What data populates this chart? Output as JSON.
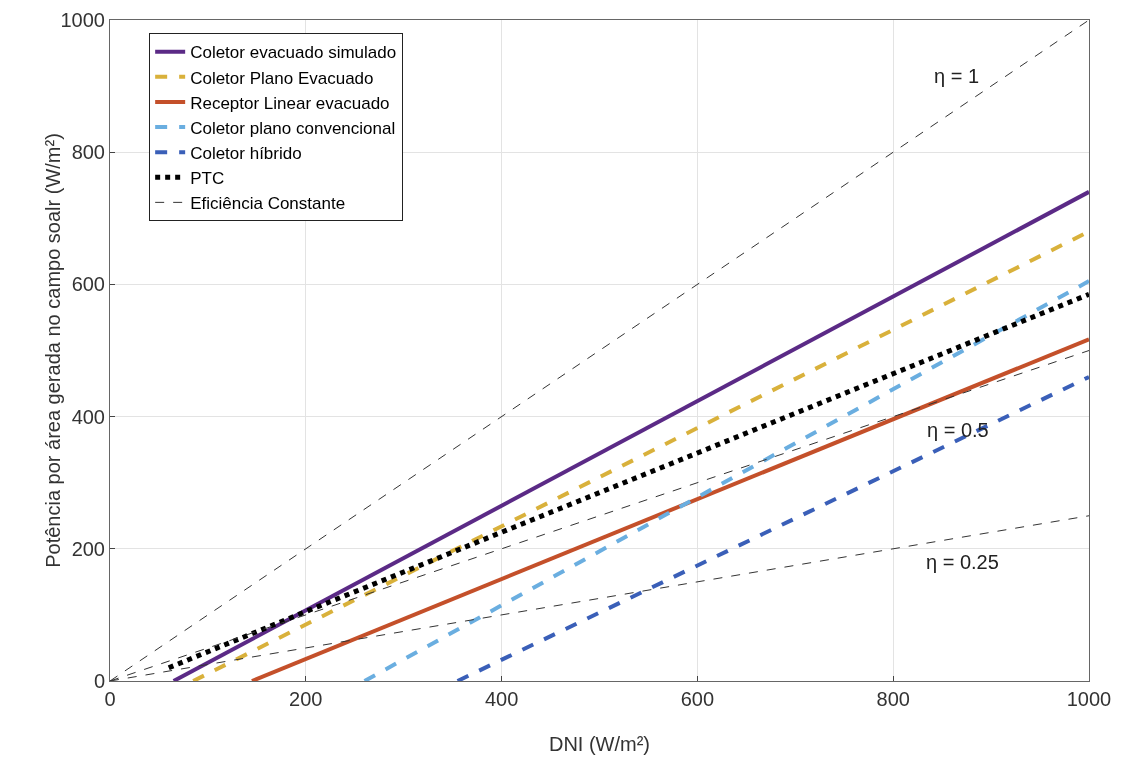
{
  "chart_data": {
    "type": "line",
    "xlabel": "DNI (W/m²)",
    "ylabel": "Potência por área gerada no campo soalr (W/m²)",
    "xlim": [
      0,
      1000
    ],
    "ylim": [
      0,
      1000
    ],
    "xticks": [
      0,
      200,
      400,
      600,
      800,
      1000
    ],
    "yticks": [
      0,
      200,
      400,
      600,
      800,
      1000
    ],
    "grid": true,
    "legend": "top left",
    "marker": "none",
    "series": [
      {
        "name": "Coletor evacuado simulado",
        "color": "#5b2a86",
        "line_style": "solid",
        "x": [
          65,
          1000
        ],
        "values": [
          0,
          740
        ]
      },
      {
        "name": "Coletor Plano Evacuado",
        "color": "#d9b13b",
        "line_style": "dashed",
        "x": [
          85,
          1000
        ],
        "values": [
          0,
          680
        ]
      },
      {
        "name": "Receptor Linear evacuado",
        "color": "#c4502a",
        "line_style": "solid",
        "x": [
          145,
          1000
        ],
        "values": [
          0,
          517
        ]
      },
      {
        "name": "Coletor plano convencional",
        "color": "#6aaee0",
        "line_style": "dashed",
        "x": [
          260,
          1000
        ],
        "values": [
          0,
          605
        ]
      },
      {
        "name": "Coletor híbrido",
        "color": "#3a5fb8",
        "line_style": "dashed",
        "x": [
          355,
          1000
        ],
        "values": [
          0,
          460
        ]
      },
      {
        "name": "PTC",
        "color": "#000000",
        "line_style": "dotted",
        "x": [
          60,
          200,
          1000
        ],
        "values": [
          20,
          105,
          585
        ]
      },
      {
        "name": "Eficiência Constante",
        "color": "#333333",
        "line_style": "dashed",
        "x": [
          0,
          1000
        ],
        "values": [
          0,
          1000
        ]
      },
      {
        "color": "#333333",
        "line_style": "dashed",
        "x": [
          0,
          1000
        ],
        "values": [
          0,
          500
        ]
      },
      {
        "color": "#333333",
        "line_style": "dashed",
        "x": [
          0,
          1000
        ],
        "values": [
          0,
          250
        ]
      }
    ],
    "annotations": [
      "η = 1",
      "η = 0.5",
      "η = 0.25"
    ]
  }
}
